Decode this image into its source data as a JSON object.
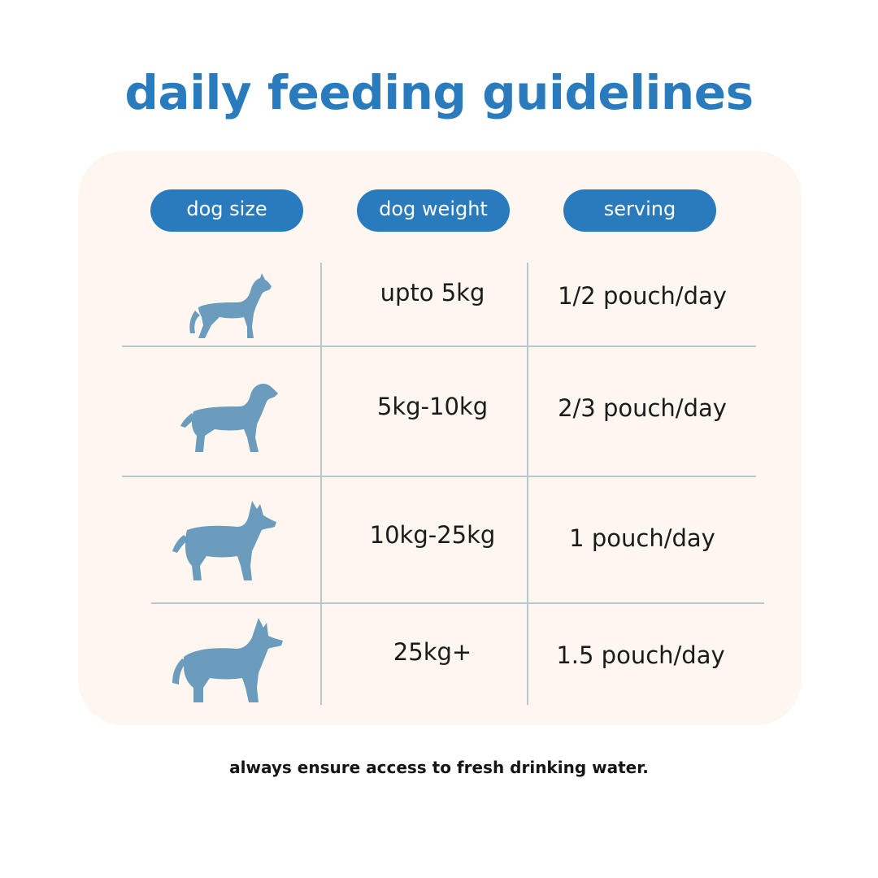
{
  "title": "daily feeding guidelines",
  "table": {
    "headers": [
      "dog size",
      "dog weight",
      "serving"
    ],
    "rows": [
      {
        "size_icon": "small-dog-icon",
        "weight": "upto 5kg",
        "serving": "1/2 pouch/day"
      },
      {
        "size_icon": "medium-dog-icon",
        "weight": "5kg-10kg",
        "serving": "2/3 pouch/day"
      },
      {
        "size_icon": "large-dog-icon",
        "weight": "10kg-25kg",
        "serving": "1 pouch/day"
      },
      {
        "size_icon": "extra-large-dog-icon",
        "weight": "25kg+",
        "serving": "1.5 pouch/day"
      }
    ]
  },
  "footer_note": "always ensure access to fresh drinking water.",
  "colors": {
    "accent": "#2a7bbd",
    "card_background": "#fdf7ef",
    "icon": "#6b9bbd",
    "divider": "#b7c6cf"
  }
}
